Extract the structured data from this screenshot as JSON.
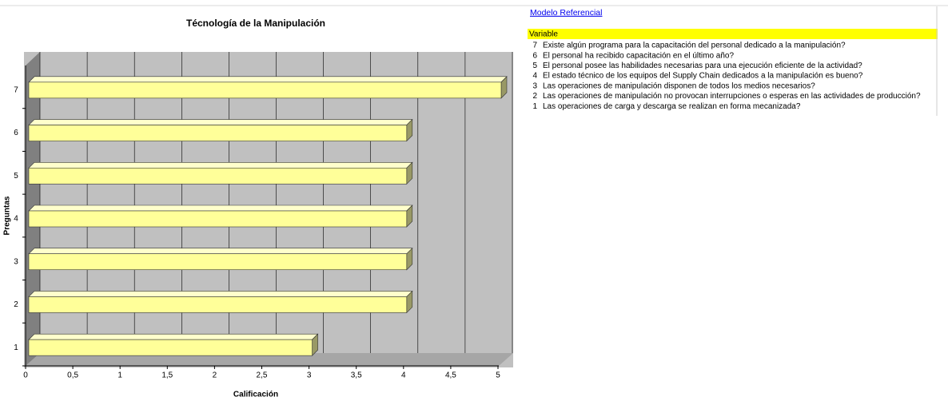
{
  "chart_data": {
    "type": "bar",
    "orientation": "horizontal",
    "title": "Técnología de la Manipulación",
    "x_label": "Calificación",
    "y_label": "Preguntas",
    "categories": [
      "1",
      "2",
      "3",
      "4",
      "5",
      "6",
      "7"
    ],
    "values": [
      3,
      4,
      4,
      4,
      4,
      4,
      5
    ],
    "color": "#ffff99",
    "xlim": [
      0,
      5
    ],
    "xticks": [
      0,
      {
        "value": 0.5,
        "label": "0,5"
      },
      1,
      {
        "value": 1.5,
        "label": "1,5"
      },
      2,
      {
        "value": 2.5,
        "label": "2,5"
      },
      3,
      {
        "value": 3.5,
        "label": "3,5"
      },
      4,
      {
        "value": 4.5,
        "label": "4,5"
      },
      5
    ],
    "grid": true
  },
  "side_panel": {
    "link": "Modelo Referencial",
    "header": "Variable",
    "items": [
      {
        "number": "7",
        "text": "Existe algún programa para la capacitación del personal dedicado a la manipulación?"
      },
      {
        "number": "6",
        "text": "El personal ha recibido capacitación en el último año?"
      },
      {
        "number": "5",
        "text": "El personal posee las habilidades necesarias para una ejecución eficiente de la actividad?"
      },
      {
        "number": "4",
        "text": "El estado técnico de los equipos del Supply Chain dedicados a la manipulación es bueno?"
      },
      {
        "number": "3",
        "text": "Las operaciones de manipulación disponen de todos los medios necesarios?"
      },
      {
        "number": "2",
        "text": "Las operaciones de manipulación no provocan interrupciones o esperas en las actividades de producción?"
      },
      {
        "number": "1",
        "text": "Las operaciones de carga y descarga se realizan en forma mecanizada?"
      }
    ]
  }
}
